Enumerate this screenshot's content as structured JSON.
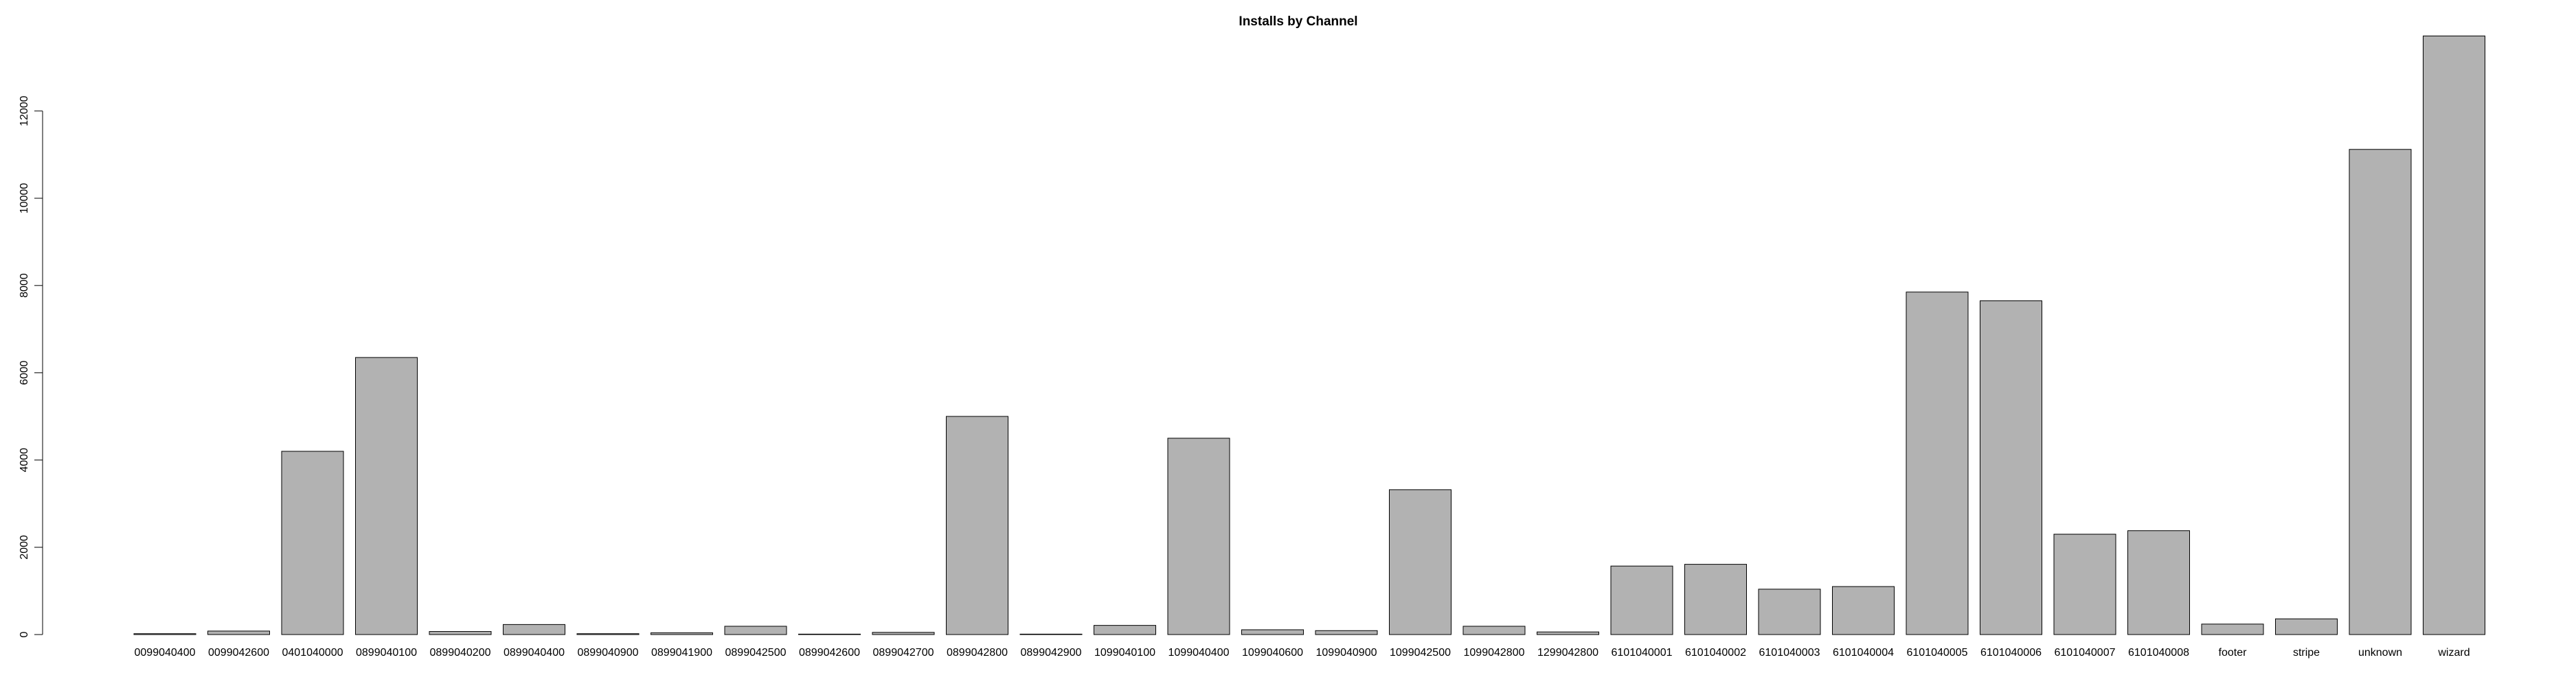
{
  "chart_data": {
    "type": "bar",
    "title": "Installs by Channel",
    "xlabel": "",
    "ylabel": "",
    "ylim": [
      0,
      14000
    ],
    "yticks": [
      0,
      2000,
      4000,
      6000,
      8000,
      10000,
      12000
    ],
    "grid": false,
    "legend": "none",
    "bar_color": "#b2b2b2",
    "bar_border_color": "#000000",
    "categories": [
      "0099040400",
      "0099042600",
      "0401040000",
      "0899040100",
      "0899040200",
      "0899040400",
      "0899040900",
      "0899041900",
      "0899042500",
      "0899042600",
      "0899042700",
      "0899042800",
      "0899042900",
      "1099040100",
      "1099040400",
      "1099040600",
      "1099040900",
      "1099042500",
      "1099042800",
      "1299042800",
      "6101040001",
      "6101040002",
      "6101040003",
      "6101040004",
      "6101040005",
      "6101040006",
      "6101040007",
      "6101040008",
      "footer",
      "stripe",
      "unknown",
      "wizard"
    ],
    "values": [
      20,
      80,
      4200,
      6350,
      70,
      230,
      20,
      40,
      190,
      10,
      50,
      5000,
      10,
      210,
      4500,
      110,
      90,
      3320,
      190,
      60,
      1570,
      1610,
      1040,
      1100,
      7850,
      7650,
      2300,
      2380,
      240,
      360,
      11120,
      13720
    ]
  }
}
